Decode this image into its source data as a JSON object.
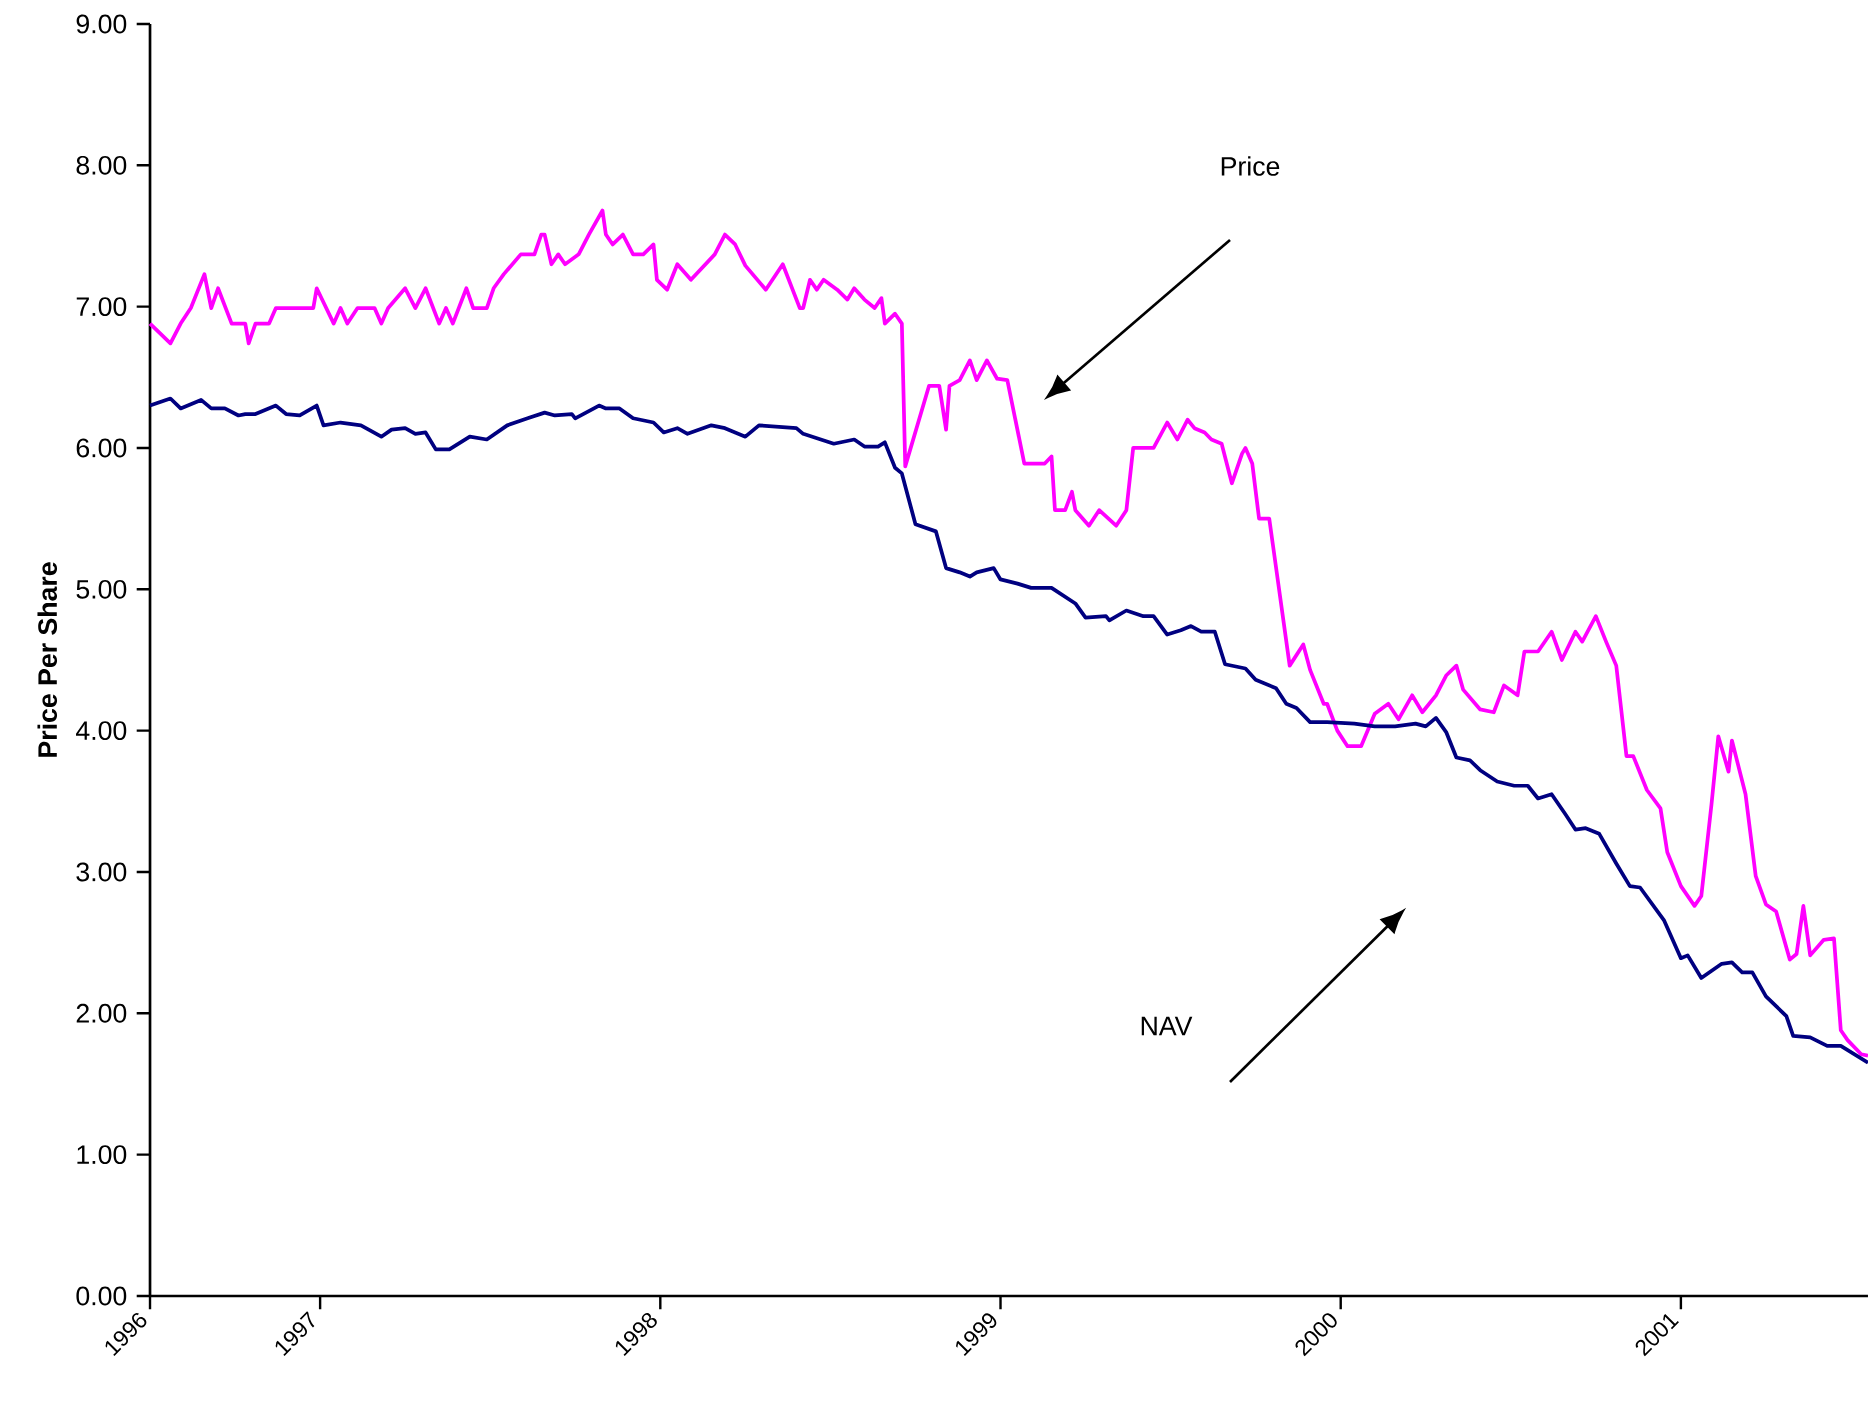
{
  "chart_data": {
    "type": "line",
    "ylabel": "Price Per Share",
    "xlim": [
      1996.5,
      2001.55
    ],
    "ylim": [
      0,
      9
    ],
    "xticks": [
      {
        "value": 1996.5,
        "label": "1996"
      },
      {
        "value": 1997,
        "label": "1997"
      },
      {
        "value": 1998,
        "label": "1998"
      },
      {
        "value": 1999,
        "label": "1999"
      },
      {
        "value": 2000,
        "label": "2000"
      },
      {
        "value": 2001,
        "label": "2001"
      }
    ],
    "yticks": [
      {
        "value": 0,
        "label": "0.00"
      },
      {
        "value": 1,
        "label": "1.00"
      },
      {
        "value": 2,
        "label": "2.00"
      },
      {
        "value": 3,
        "label": "3.00"
      },
      {
        "value": 4,
        "label": "4.00"
      },
      {
        "value": 5,
        "label": "5.00"
      },
      {
        "value": 6,
        "label": "6.00"
      },
      {
        "value": 7,
        "label": "7.00"
      },
      {
        "value": 8,
        "label": "8.00"
      },
      {
        "value": 9,
        "label": "9.00"
      }
    ],
    "grid": false,
    "marker": "none",
    "line_style": "solid",
    "annotations": [
      "Price",
      "NAV"
    ],
    "series": [
      {
        "color": "#ff00ff",
        "x": [
          1996.5,
          1996.56,
          1996.59,
          1996.62,
          1996.66,
          1996.68,
          1996.7,
          1996.74,
          1996.78,
          1996.79,
          1996.81,
          1996.85,
          1996.87,
          1996.98,
          1996.99,
          1997.04,
          1997.06,
          1997.08,
          1997.11,
          1997.16,
          1997.18,
          1997.2,
          1997.25,
          1997.28,
          1997.31,
          1997.35,
          1997.37,
          1997.39,
          1997.43,
          1997.45,
          1997.49,
          1997.51,
          1997.54,
          1997.59,
          1997.63,
          1997.65,
          1997.66,
          1997.68,
          1997.7,
          1997.72,
          1997.76,
          1997.79,
          1997.83,
          1997.84,
          1997.86,
          1997.89,
          1997.92,
          1997.95,
          1997.98,
          1997.99,
          1998.02,
          1998.05,
          1998.09,
          1998.16,
          1998.19,
          1998.22,
          1998.25,
          1998.31,
          1998.36,
          1998.41,
          1998.42,
          1998.44,
          1998.46,
          1998.48,
          1998.52,
          1998.55,
          1998.57,
          1998.6,
          1998.63,
          1998.65,
          1998.66,
          1998.69,
          1998.71,
          1998.72,
          1998.79,
          1998.82,
          1998.84,
          1998.85,
          1998.88,
          1998.91,
          1998.93,
          1998.96,
          1998.99,
          1999.02,
          1999.07,
          1999.13,
          1999.15,
          1999.16,
          1999.19,
          1999.21,
          1999.22,
          1999.26,
          1999.29,
          1999.34,
          1999.37,
          1999.39,
          1999.45,
          1999.49,
          1999.52,
          1999.55,
          1999.57,
          1999.6,
          1999.62,
          1999.65,
          1999.68,
          1999.71,
          1999.72,
          1999.74,
          1999.76,
          1999.79,
          1999.85,
          1999.89,
          1999.91,
          1999.95,
          1999.96,
          1999.99,
          2000.02,
          2000.06,
          2000.1,
          2000.14,
          2000.17,
          2000.21,
          2000.24,
          2000.28,
          2000.31,
          2000.34,
          2000.36,
          2000.41,
          2000.45,
          2000.48,
          2000.52,
          2000.54,
          2000.58,
          2000.62,
          2000.65,
          2000.69,
          2000.71,
          2000.75,
          2000.78,
          2000.81,
          2000.84,
          2000.86,
          2000.9,
          2000.94,
          2000.96,
          2001.0,
          2001.04,
          2001.06,
          2001.09,
          2001.11,
          2001.14,
          2001.15,
          2001.19,
          2001.22,
          2001.25,
          2001.28,
          2001.32,
          2001.34,
          2001.36,
          2001.38,
          2001.42,
          2001.45,
          2001.47,
          2001.49,
          2001.53,
          2001.55
        ],
        "values": [
          6.88,
          6.74,
          6.88,
          6.99,
          7.23,
          6.99,
          7.13,
          6.88,
          6.88,
          6.74,
          6.88,
          6.88,
          6.99,
          6.99,
          7.13,
          6.88,
          6.99,
          6.88,
          6.99,
          6.99,
          6.88,
          6.99,
          7.13,
          6.99,
          7.13,
          6.88,
          6.99,
          6.88,
          7.13,
          6.99,
          6.99,
          7.13,
          7.23,
          7.37,
          7.37,
          7.51,
          7.51,
          7.3,
          7.37,
          7.3,
          7.37,
          7.51,
          7.68,
          7.51,
          7.44,
          7.51,
          7.37,
          7.37,
          7.44,
          7.19,
          7.12,
          7.3,
          7.19,
          7.37,
          7.51,
          7.44,
          7.29,
          7.12,
          7.3,
          6.99,
          6.99,
          7.19,
          7.12,
          7.19,
          7.12,
          7.05,
          7.13,
          7.05,
          6.99,
          7.06,
          6.88,
          6.95,
          6.88,
          5.87,
          6.44,
          6.44,
          6.13,
          6.44,
          6.48,
          6.62,
          6.48,
          6.62,
          6.49,
          6.48,
          5.89,
          5.89,
          5.94,
          5.56,
          5.56,
          5.69,
          5.56,
          5.45,
          5.56,
          5.45,
          5.56,
          6.0,
          6.0,
          6.18,
          6.06,
          6.2,
          6.14,
          6.11,
          6.06,
          6.03,
          5.75,
          5.96,
          6.0,
          5.89,
          5.5,
          5.5,
          4.46,
          4.61,
          4.43,
          4.19,
          4.19,
          4.0,
          3.89,
          3.89,
          4.12,
          4.19,
          4.08,
          4.25,
          4.13,
          4.25,
          4.39,
          4.46,
          4.29,
          4.15,
          4.13,
          4.32,
          4.25,
          4.56,
          4.56,
          4.7,
          4.5,
          4.7,
          4.63,
          4.81,
          4.63,
          4.46,
          3.82,
          3.82,
          3.58,
          3.45,
          3.14,
          2.9,
          2.76,
          2.83,
          3.48,
          3.96,
          3.71,
          3.93,
          3.55,
          2.97,
          2.77,
          2.72,
          2.38,
          2.42,
          2.76,
          2.41,
          2.52,
          2.53,
          1.88,
          1.81,
          1.71,
          1.7
        ]
      },
      {
        "color": "#000080",
        "x": [
          1996.5,
          1996.56,
          1996.59,
          1996.65,
          1996.68,
          1996.72,
          1996.76,
          1996.78,
          1996.81,
          1996.87,
          1996.9,
          1996.94,
          1996.99,
          1997.01,
          1997.06,
          1997.12,
          1997.18,
          1997.21,
          1997.25,
          1997.28,
          1997.31,
          1997.34,
          1997.38,
          1997.44,
          1997.49,
          1997.55,
          1997.61,
          1997.66,
          1997.69,
          1997.74,
          1997.75,
          1997.82,
          1997.84,
          1997.88,
          1997.92,
          1997.98,
          1998.01,
          1998.05,
          1998.08,
          1998.15,
          1998.19,
          1998.25,
          1998.29,
          1998.4,
          1998.42,
          1998.51,
          1998.57,
          1998.6,
          1998.64,
          1998.66,
          1998.69,
          1998.71,
          1998.75,
          1998.81,
          1998.84,
          1998.88,
          1998.91,
          1998.93,
          1998.98,
          1999.0,
          1999.05,
          1999.09,
          1999.15,
          1999.22,
          1999.25,
          1999.31,
          1999.32,
          1999.37,
          1999.42,
          1999.45,
          1999.49,
          1999.53,
          1999.56,
          1999.59,
          1999.63,
          1999.66,
          1999.72,
          1999.75,
          1999.81,
          1999.84,
          1999.87,
          1999.91,
          1999.96,
          2000.04,
          2000.1,
          2000.16,
          2000.22,
          2000.25,
          2000.28,
          2000.31,
          2000.34,
          2000.38,
          2000.41,
          2000.46,
          2000.51,
          2000.55,
          2000.58,
          2000.62,
          2000.66,
          2000.69,
          2000.72,
          2000.76,
          2000.81,
          2000.85,
          2000.88,
          2000.95,
          2001.0,
          2001.02,
          2001.06,
          2001.12,
          2001.15,
          2001.18,
          2001.21,
          2001.25,
          2001.31,
          2001.33,
          2001.38,
          2001.43,
          2001.47,
          2001.55
        ],
        "values": [
          6.3,
          6.35,
          6.28,
          6.34,
          6.28,
          6.28,
          6.23,
          6.24,
          6.24,
          6.3,
          6.24,
          6.23,
          6.3,
          6.16,
          6.18,
          6.16,
          6.08,
          6.13,
          6.14,
          6.1,
          6.11,
          5.99,
          5.99,
          6.08,
          6.06,
          6.16,
          6.21,
          6.25,
          6.23,
          6.24,
          6.21,
          6.3,
          6.28,
          6.28,
          6.21,
          6.18,
          6.11,
          6.14,
          6.1,
          6.16,
          6.14,
          6.08,
          6.16,
          6.14,
          6.1,
          6.03,
          6.06,
          6.01,
          6.01,
          6.04,
          5.86,
          5.82,
          5.46,
          5.41,
          5.15,
          5.12,
          5.09,
          5.12,
          5.15,
          5.07,
          5.04,
          5.01,
          5.01,
          4.9,
          4.8,
          4.81,
          4.78,
          4.85,
          4.81,
          4.81,
          4.68,
          4.71,
          4.74,
          4.7,
          4.7,
          4.47,
          4.44,
          4.36,
          4.3,
          4.19,
          4.16,
          4.06,
          4.06,
          4.05,
          4.03,
          4.03,
          4.05,
          4.03,
          4.09,
          3.99,
          3.81,
          3.79,
          3.72,
          3.64,
          3.61,
          3.61,
          3.52,
          3.55,
          3.41,
          3.3,
          3.31,
          3.27,
          3.06,
          2.9,
          2.89,
          2.66,
          2.39,
          2.41,
          2.25,
          2.35,
          2.36,
          2.29,
          2.29,
          2.12,
          1.98,
          1.84,
          1.83,
          1.77,
          1.77,
          1.65
        ]
      }
    ]
  }
}
